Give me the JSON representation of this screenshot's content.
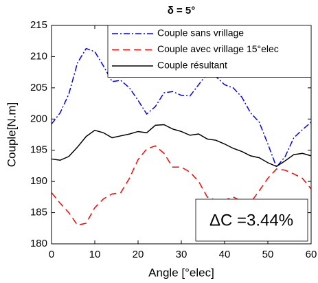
{
  "chart_data": {
    "type": "line",
    "title": "δ = 5°",
    "xlabel": "Angle [°elec]",
    "ylabel": "Couple[N.m]",
    "x": [
      0,
      2,
      4,
      6,
      8,
      10,
      12,
      14,
      16,
      18,
      20,
      22,
      24,
      26,
      28,
      30,
      32,
      34,
      36,
      38,
      40,
      42,
      44,
      46,
      48,
      50,
      52,
      54,
      56,
      58,
      60
    ],
    "series": [
      {
        "name": "Couple sans vrillage",
        "color": "#0000ff",
        "style": "dashdot",
        "values": [
          199.2,
          201,
          204,
          209,
          211.3,
          210.8,
          208.5,
          206,
          206.2,
          205,
          203,
          200.8,
          202,
          204.2,
          204.4,
          203.8,
          203.7,
          205.5,
          207.3,
          206.8,
          205.5,
          205,
          203.5,
          201,
          199.5,
          196,
          192.3,
          194,
          197,
          198.3,
          199.5
        ]
      },
      {
        "name": "Couple avec vrillage 15°elec",
        "color": "#ff0000",
        "style": "dashed",
        "values": [
          188.2,
          186.5,
          185,
          183,
          183.3,
          185.8,
          187.2,
          188,
          188.2,
          190.5,
          193.5,
          195.2,
          195.7,
          194.5,
          192.3,
          192.3,
          191.5,
          190,
          187.5,
          187,
          187,
          187.5,
          186.8,
          186.6,
          188.5,
          190.5,
          192,
          191.8,
          191.2,
          190.5,
          188.8
        ]
      },
      {
        "name": "Couple résultant",
        "color": "#000000",
        "style": "solid",
        "values": [
          193.6,
          193.4,
          194,
          195.5,
          197.2,
          198.2,
          197.8,
          197,
          197.3,
          197.6,
          198,
          197.8,
          199,
          199.1,
          198.4,
          198,
          197.4,
          197.6,
          196.8,
          196.6,
          196,
          195.3,
          194.8,
          194.1,
          193.8,
          193,
          192.4,
          193.3,
          194.3,
          194.5,
          194.1
        ]
      }
    ],
    "xlim": [
      0,
      60
    ],
    "xticks": [
      0,
      10,
      20,
      30,
      40,
      50,
      60
    ],
    "ylim": [
      180,
      215
    ],
    "yticks": [
      180,
      185,
      190,
      195,
      200,
      205,
      210,
      215
    ],
    "grid": false,
    "legend": "upper right",
    "annotation": "ΔC =3.44%"
  }
}
